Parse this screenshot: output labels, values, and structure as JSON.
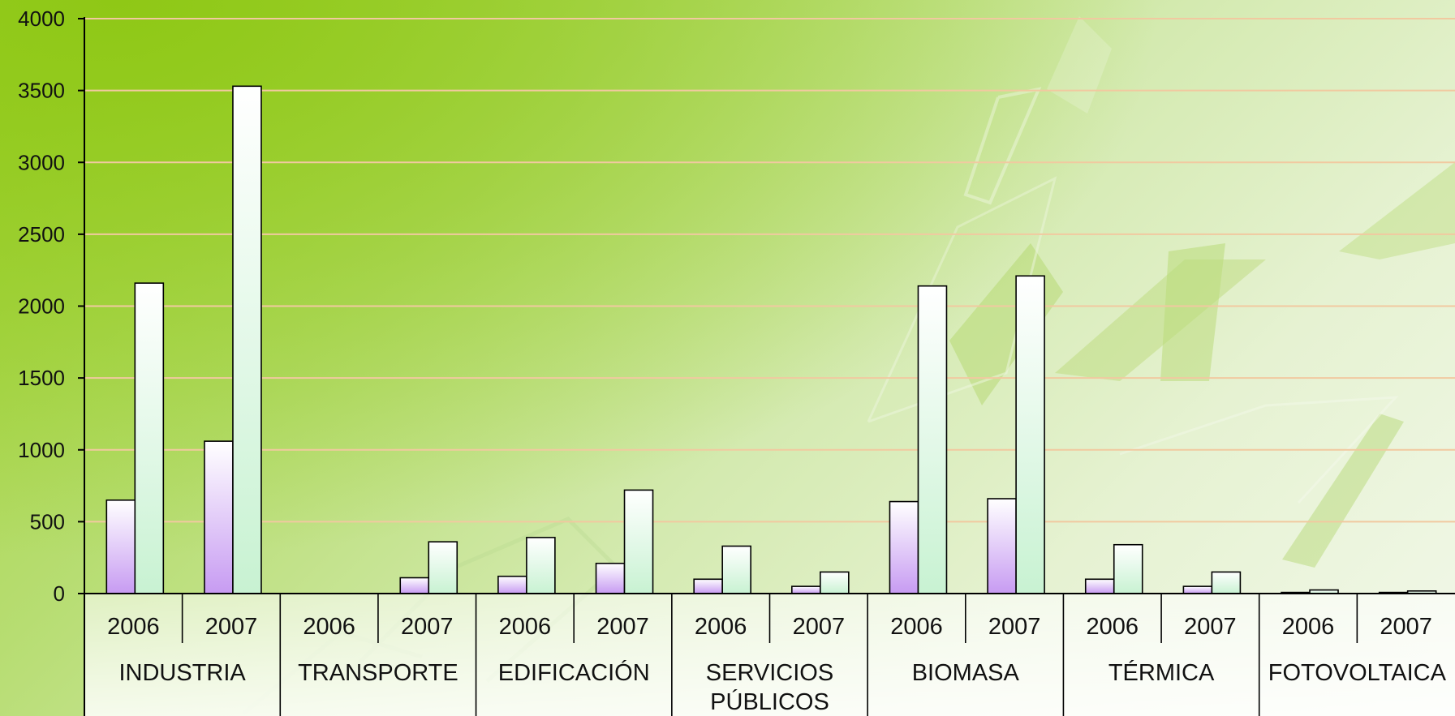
{
  "chart_data": {
    "type": "bar",
    "title": "",
    "xlabel": "",
    "ylabel": "",
    "ylim": [
      0,
      4000
    ],
    "yticks": [
      "0",
      "500",
      "1000",
      "1500",
      "2000",
      "2500",
      "3000",
      "3500",
      "4000"
    ],
    "groups": [
      {
        "name": "INDUSTRIA",
        "name_lines": [
          "INDUSTRIA"
        ],
        "years": [
          {
            "year": "2006",
            "values": [
              650,
              2160
            ]
          },
          {
            "year": "2007",
            "values": [
              1060,
              3530
            ]
          }
        ]
      },
      {
        "name": "TRANSPORTE",
        "name_lines": [
          "TRANSPORTE"
        ],
        "years": [
          {
            "year": "2006",
            "values": [
              0,
              0
            ]
          },
          {
            "year": "2007",
            "values": [
              110,
              360
            ]
          }
        ]
      },
      {
        "name": "EDIFICACIÓN",
        "name_lines": [
          "EDIFICACIÓN"
        ],
        "years": [
          {
            "year": "2006",
            "values": [
              120,
              390
            ]
          },
          {
            "year": "2007",
            "values": [
              210,
              720
            ]
          }
        ]
      },
      {
        "name": "SERVICIOS PÚBLICOS",
        "name_lines": [
          "SERVICIOS",
          "PÚBLICOS"
        ],
        "years": [
          {
            "year": "2006",
            "values": [
              100,
              330
            ]
          },
          {
            "year": "2007",
            "values": [
              50,
              150
            ]
          }
        ]
      },
      {
        "name": "BIOMASA",
        "name_lines": [
          "BIOMASA"
        ],
        "years": [
          {
            "year": "2006",
            "values": [
              640,
              2140
            ]
          },
          {
            "year": "2007",
            "values": [
              660,
              2210
            ]
          }
        ]
      },
      {
        "name": "TÉRMICA",
        "name_lines": [
          "TÉRMICA"
        ],
        "years": [
          {
            "year": "2006",
            "values": [
              100,
              340
            ]
          },
          {
            "year": "2007",
            "values": [
              50,
              150
            ]
          }
        ]
      },
      {
        "name": "FOTOVOLTAICA",
        "name_lines": [
          "FOTOVOLTAICA"
        ],
        "years": [
          {
            "year": "2006",
            "values": [
              8,
              25
            ]
          },
          {
            "year": "2007",
            "values": [
              8,
              18
            ]
          }
        ]
      }
    ],
    "series": [
      {
        "color_top": "#ffffff",
        "color_bottom": "#c79bf2"
      },
      {
        "color_top": "#ffffff",
        "color_bottom": "#c8f2d2"
      }
    ],
    "grid": true,
    "grid_color": "#f1c9a0",
    "legend": "none"
  }
}
